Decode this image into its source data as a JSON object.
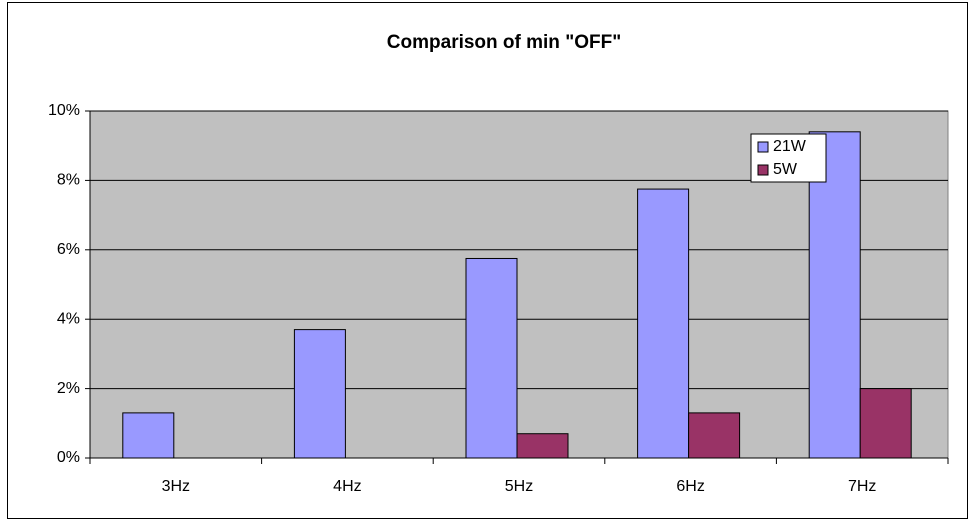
{
  "chart_data": {
    "type": "bar",
    "title": "Comparison of min \"OFF\"",
    "categories": [
      "3Hz",
      "4Hz",
      "5Hz",
      "6Hz",
      "7Hz"
    ],
    "series": [
      {
        "name": "21W",
        "color": "#9999ff",
        "values": [
          1.3,
          3.7,
          5.75,
          7.75,
          9.4
        ]
      },
      {
        "name": "5W",
        "color": "#993366",
        "values": [
          0,
          0,
          0.7,
          1.3,
          2.0
        ]
      }
    ],
    "ylim": [
      0,
      10
    ],
    "yticks": [
      {
        "value": 0,
        "label": "0%"
      },
      {
        "value": 2,
        "label": "2%"
      },
      {
        "value": 4,
        "label": "4%"
      },
      {
        "value": 6,
        "label": "6%"
      },
      {
        "value": 8,
        "label": "8%"
      },
      {
        "value": 10,
        "label": "10%"
      }
    ],
    "grid": true,
    "legend": "upper right"
  }
}
